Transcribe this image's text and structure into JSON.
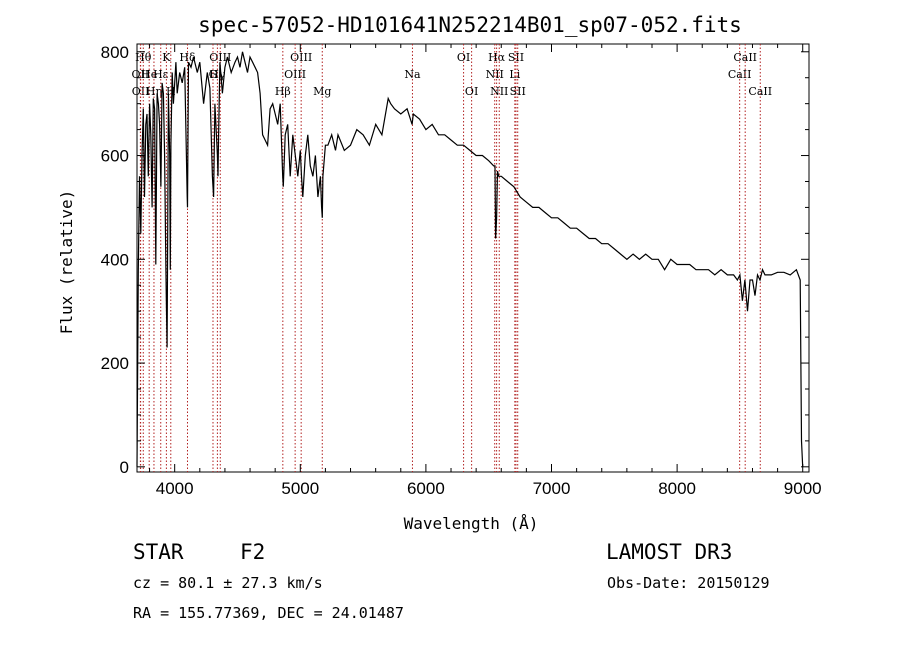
{
  "chart_data": {
    "type": "line",
    "title": "spec-57052-HD101641N252214B01_sp07-052.fits",
    "xlabel": "Wavelength (Å)",
    "ylabel": "Flux (relative)",
    "xlim": [
      3700,
      9050
    ],
    "ylim": [
      -10,
      815
    ],
    "xticks": [
      4000,
      5000,
      6000,
      7000,
      8000,
      9000
    ],
    "yticks": [
      0,
      200,
      400,
      600,
      800
    ],
    "x": [
      3700,
      3710,
      3720,
      3730,
      3740,
      3750,
      3760,
      3770,
      3780,
      3790,
      3800,
      3810,
      3820,
      3830,
      3840,
      3850,
      3860,
      3870,
      3880,
      3890,
      3900,
      3910,
      3920,
      3930,
      3935,
      3940,
      3950,
      3960,
      3965,
      3970,
      3980,
      3990,
      4000,
      4010,
      4020,
      4040,
      4060,
      4080,
      4100,
      4102,
      4110,
      4130,
      4150,
      4180,
      4200,
      4230,
      4260,
      4280,
      4300,
      4310,
      4320,
      4340,
      4345,
      4350,
      4360,
      4380,
      4400,
      4420,
      4450,
      4480,
      4500,
      4520,
      4540,
      4560,
      4580,
      4600,
      4620,
      4640,
      4660,
      4680,
      4700,
      4720,
      4740,
      4760,
      4780,
      4800,
      4820,
      4840,
      4860,
      4865,
      4880,
      4900,
      4920,
      4940,
      4960,
      4980,
      5000,
      5010,
      5020,
      5040,
      5060,
      5080,
      5100,
      5120,
      5140,
      5160,
      5170,
      5175,
      5180,
      5200,
      5220,
      5250,
      5280,
      5300,
      5350,
      5400,
      5450,
      5500,
      5550,
      5600,
      5650,
      5700,
      5720,
      5750,
      5800,
      5850,
      5890,
      5900,
      5950,
      6000,
      6050,
      6100,
      6150,
      6200,
      6250,
      6300,
      6350,
      6400,
      6450,
      6500,
      6540,
      6550,
      6555,
      6563,
      6570,
      6580,
      6600,
      6650,
      6700,
      6750,
      6800,
      6850,
      6900,
      6950,
      7000,
      7050,
      7100,
      7150,
      7200,
      7250,
      7300,
      7350,
      7400,
      7450,
      7500,
      7550,
      7600,
      7650,
      7700,
      7750,
      7800,
      7850,
      7900,
      7950,
      8000,
      8050,
      8100,
      8150,
      8200,
      8250,
      8300,
      8350,
      8400,
      8450,
      8480,
      8500,
      8520,
      8540,
      8560,
      8580,
      8600,
      8620,
      8640,
      8660,
      8680,
      8700,
      8750,
      8800,
      8850,
      8900,
      8950,
      8980,
      8990,
      9000
    ],
    "values": [
      0,
      380,
      560,
      450,
      600,
      690,
      520,
      660,
      680,
      560,
      700,
      640,
      500,
      710,
      690,
      390,
      720,
      700,
      660,
      540,
      740,
      720,
      600,
      380,
      300,
      230,
      720,
      600,
      380,
      620,
      760,
      700,
      740,
      780,
      720,
      760,
      740,
      770,
      520,
      500,
      780,
      770,
      790,
      760,
      780,
      700,
      760,
      730,
      560,
      520,
      700,
      600,
      560,
      640,
      780,
      720,
      770,
      790,
      760,
      780,
      790,
      770,
      800,
      780,
      760,
      790,
      780,
      770,
      760,
      720,
      640,
      630,
      620,
      690,
      700,
      680,
      660,
      700,
      560,
      540,
      640,
      660,
      560,
      640,
      600,
      560,
      610,
      560,
      520,
      600,
      640,
      580,
      560,
      600,
      520,
      560,
      500,
      480,
      560,
      620,
      620,
      640,
      610,
      640,
      610,
      620,
      650,
      640,
      620,
      660,
      640,
      710,
      700,
      690,
      680,
      690,
      660,
      680,
      670,
      650,
      660,
      640,
      640,
      630,
      620,
      620,
      610,
      600,
      600,
      590,
      580,
      580,
      440,
      480,
      570,
      560,
      560,
      550,
      540,
      520,
      510,
      500,
      500,
      490,
      480,
      480,
      470,
      460,
      460,
      450,
      440,
      440,
      430,
      430,
      420,
      410,
      400,
      410,
      400,
      410,
      400,
      400,
      380,
      400,
      390,
      390,
      390,
      380,
      380,
      380,
      370,
      380,
      370,
      370,
      360,
      370,
      320,
      360,
      300,
      360,
      360,
      330,
      370,
      360,
      380,
      370,
      370,
      375,
      375,
      370,
      380,
      360,
      50,
      0
    ],
    "emission_lines": [
      {
        "label": "OII",
        "wl": 3727,
        "row": 2
      },
      {
        "label": "OII",
        "wl": 3729,
        "row": 3
      },
      {
        "label": "Hθ",
        "wl": 3750,
        "row": 1
      },
      {
        "label": "He",
        "wl": 3797,
        "row": 2
      },
      {
        "label": "Hη",
        "wl": 3835,
        "row": 3
      },
      {
        "label": "K",
        "wl": 3934,
        "row": 1
      },
      {
        "label": "Hε",
        "wl": 3889,
        "row": 2
      },
      {
        "label": "H",
        "wl": 3969,
        "row": 3
      },
      {
        "label": "Hδ",
        "wl": 4102,
        "row": 1
      },
      {
        "label": "G",
        "wl": 4305,
        "row": 2
      },
      {
        "label": "OIII",
        "wl": 4363,
        "row": 1
      },
      {
        "label": "Hγ",
        "wl": 4340,
        "row": 2
      },
      {
        "label": "Hβ",
        "wl": 4861,
        "row": 3
      },
      {
        "label": "OIII",
        "wl": 4959,
        "row": 2
      },
      {
        "label": "OIII",
        "wl": 5007,
        "row": 1
      },
      {
        "label": "Mg",
        "wl": 5175,
        "row": 3
      },
      {
        "label": "Na",
        "wl": 5893,
        "row": 2
      },
      {
        "label": "OI",
        "wl": 6300,
        "row": 1
      },
      {
        "label": "OI",
        "wl": 6364,
        "row": 3
      },
      {
        "label": "NII",
        "wl": 6548,
        "row": 2
      },
      {
        "label": "Hα",
        "wl": 6563,
        "row": 1
      },
      {
        "label": "NII",
        "wl": 6584,
        "row": 3
      },
      {
        "label": "Li",
        "wl": 6708,
        "row": 2
      },
      {
        "label": "SII",
        "wl": 6717,
        "row": 1
      },
      {
        "label": "SII",
        "wl": 6731,
        "row": 3
      },
      {
        "label": "CaII",
        "wl": 8498,
        "row": 2
      },
      {
        "label": "CaII",
        "wl": 8542,
        "row": 1
      },
      {
        "label": "CaII",
        "wl": 8662,
        "row": 3
      }
    ]
  },
  "info": {
    "class_label": "STAR",
    "subclass": "F2",
    "survey": "LAMOST DR3",
    "cz": "cz = 80.1 ± 27.3 km/s",
    "obs_date": "Obs-Date: 20150129",
    "coords": "RA = 155.77369, DEC =  24.01487"
  }
}
